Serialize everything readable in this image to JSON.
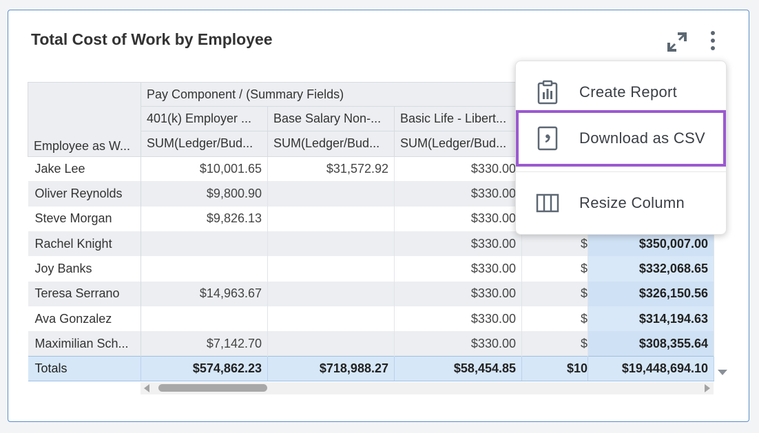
{
  "card": {
    "title": "Total Cost of Work by Employee"
  },
  "icons": {
    "expand": "expand-icon",
    "more": "more-vertical-icon",
    "report": "clipboard-report-icon",
    "csv": "comma-file-icon",
    "resize": "column-resize-icon"
  },
  "table": {
    "group_header": "Pay Component / (Summary Fields)",
    "row_header": "Employee as W...",
    "columns": [
      {
        "name": "401(k) Employer ...",
        "field": "SUM(Ledger/Bud..."
      },
      {
        "name": "Base Salary Non-...",
        "field": "SUM(Ledger/Bud..."
      },
      {
        "name": "Basic Life - Libert...",
        "field": "SUM(Ledger/Bud..."
      }
    ],
    "rows": [
      {
        "name": "Jake Lee",
        "c1": "$10,001.65",
        "c2": "$31,572.92",
        "c3": "$330.00",
        "c4": "",
        "c5": ""
      },
      {
        "name": "Oliver Reynolds",
        "c1": "$9,800.90",
        "c2": "",
        "c3": "$330.00",
        "c4": "",
        "c5": ""
      },
      {
        "name": "Steve Morgan",
        "c1": "$9,826.13",
        "c2": "",
        "c3": "$330.00",
        "c4": "",
        "c5": ""
      },
      {
        "name": "Rachel Knight",
        "c1": "",
        "c2": "",
        "c3": "$330.00",
        "c4": "$",
        "c5": "$350,007.00"
      },
      {
        "name": "Joy Banks",
        "c1": "",
        "c2": "",
        "c3": "$330.00",
        "c4": "$",
        "c5": "$332,068.65"
      },
      {
        "name": "Teresa Serrano",
        "c1": "$14,963.67",
        "c2": "",
        "c3": "$330.00",
        "c4": "$",
        "c5": "$326,150.56"
      },
      {
        "name": "Ava Gonzalez",
        "c1": "",
        "c2": "",
        "c3": "$330.00",
        "c4": "$",
        "c5": "$314,194.63"
      },
      {
        "name": "Maximilian Sch...",
        "c1": "$7,142.70",
        "c2": "",
        "c3": "$330.00",
        "c4": "$",
        "c5": "$308,355.64"
      }
    ],
    "totals": {
      "name": "Totals",
      "c1": "$574,862.23",
      "c2": "$718,988.27",
      "c3": "$58,454.85",
      "c4": "$10",
      "c5": "$19,448,694.10"
    }
  },
  "menu": {
    "items": [
      {
        "label": "Create Report"
      },
      {
        "label": "Download as CSV"
      },
      {
        "label": "Resize Column"
      }
    ]
  },
  "colors": {
    "highlight": "#9b59d0",
    "card_border": "#5b8ec8",
    "totals_bg": "#d6e7f8"
  }
}
